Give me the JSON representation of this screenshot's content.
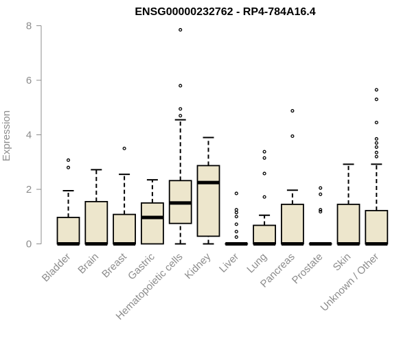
{
  "chart_data": {
    "type": "boxplot",
    "title": "ENSG00000232762 - RP4-784A16.4",
    "ylabel": "Expression",
    "xlabel": "",
    "ylim": [
      0,
      8
    ],
    "yticks": [
      "0",
      "2",
      "4",
      "6",
      "8"
    ],
    "colors": {
      "box_fill": "#ede6cc",
      "box_stroke": "#000000",
      "axis": "#8c8c8c"
    },
    "categories": [
      "Bladder",
      "Brain",
      "Breast",
      "Gastric",
      "Hematopoietic cells",
      "Kidney",
      "Liver",
      "Lung",
      "Pancreas",
      "Prostate",
      "Skin",
      "Unknown / Other"
    ],
    "boxes": [
      {
        "category": "Bladder",
        "whisker_low": 0,
        "q1": 0,
        "median": 0,
        "q3": 0.97,
        "whisker_high": 1.95,
        "outliers": [
          2.8,
          3.07
        ]
      },
      {
        "category": "Brain",
        "whisker_low": 0,
        "q1": 0,
        "median": 0,
        "q3": 1.55,
        "whisker_high": 2.72,
        "outliers": []
      },
      {
        "category": "Breast",
        "whisker_low": 0,
        "q1": 0,
        "median": 0,
        "q3": 1.08,
        "whisker_high": 2.55,
        "outliers": [
          3.5
        ]
      },
      {
        "category": "Gastric",
        "whisker_low": 0,
        "q1": 0,
        "median": 0.97,
        "q3": 1.5,
        "whisker_high": 2.35,
        "outliers": []
      },
      {
        "category": "Hematopoietic cells",
        "whisker_low": 0,
        "q1": 0.75,
        "median": 1.5,
        "q3": 2.32,
        "whisker_high": 4.55,
        "outliers": [
          4.7,
          4.95,
          5.8,
          7.85
        ]
      },
      {
        "category": "Kidney",
        "whisker_low": 0,
        "q1": 0.28,
        "median": 2.25,
        "q3": 2.87,
        "whisker_high": 3.9,
        "outliers": []
      },
      {
        "category": "Liver",
        "whisker_low": 0,
        "q1": 0,
        "median": 0,
        "q3": 0,
        "whisker_high": 0,
        "outliers": [
          0.25,
          0.45,
          0.72,
          1.0,
          1.15,
          1.25,
          1.85
        ]
      },
      {
        "category": "Lung",
        "whisker_low": 0,
        "q1": 0,
        "median": 0,
        "q3": 0.68,
        "whisker_high": 1.05,
        "outliers": [
          1.72,
          2.58,
          3.15,
          3.38
        ]
      },
      {
        "category": "Pancreas",
        "whisker_low": 0,
        "q1": 0,
        "median": 0,
        "q3": 1.45,
        "whisker_high": 1.97,
        "outliers": [
          3.95,
          4.88
        ]
      },
      {
        "category": "Prostate",
        "whisker_low": 0,
        "q1": 0,
        "median": 0,
        "q3": 0,
        "whisker_high": 0,
        "outliers": [
          1.18,
          1.25,
          1.82,
          2.05
        ]
      },
      {
        "category": "Skin",
        "whisker_low": 0,
        "q1": 0,
        "median": 0,
        "q3": 1.45,
        "whisker_high": 2.92,
        "outliers": []
      },
      {
        "category": "Unknown / Other",
        "whisker_low": 0,
        "q1": 0,
        "median": 0,
        "q3": 1.22,
        "whisker_high": 2.92,
        "outliers": [
          3.2,
          3.35,
          3.55,
          3.7,
          3.85,
          4.45,
          5.3,
          5.65
        ]
      }
    ]
  }
}
